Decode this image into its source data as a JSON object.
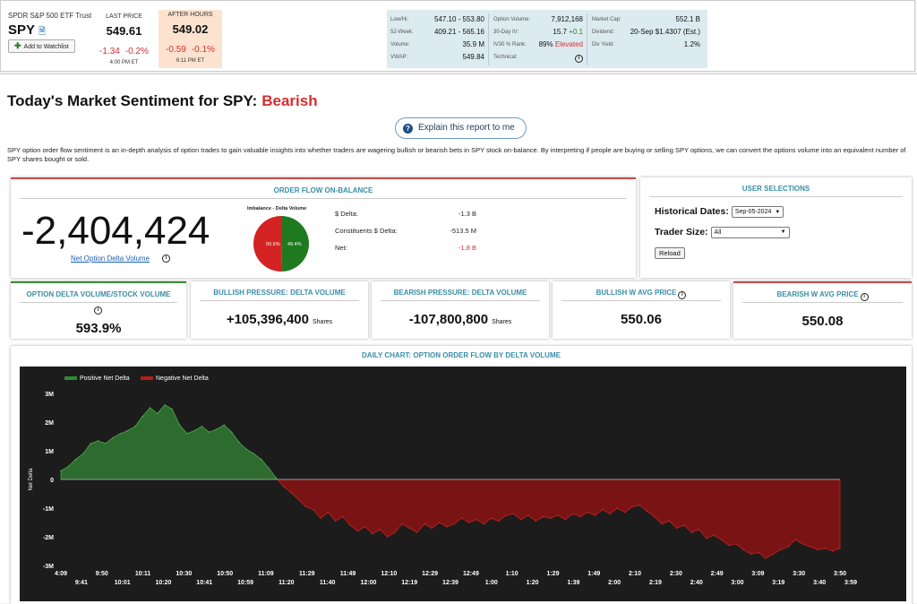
{
  "header": {
    "fund_name": "SPDR S&P 500 ETF Trust",
    "symbol": "SPY",
    "doc_icon": "document-icon",
    "watchlist_label": "Add to Watchlist",
    "last_price": {
      "label": "LAST PRICE",
      "price": "549.61",
      "change": "-1.34",
      "change_pct": "-0.2%",
      "time": "4:00 PM ET"
    },
    "after_hours": {
      "label": "AFTER HOURS",
      "price": "549.02",
      "change": "-0.59",
      "change_pct": "-0.1%",
      "time": "6:11 PM ET"
    },
    "stats": {
      "col1": [
        {
          "label": "Low/Hi:",
          "value": "547.10 - 553.80"
        },
        {
          "label": "52-Week:",
          "value": "409.21 - 565.16"
        },
        {
          "label": "Volume:",
          "value": "35.9 M"
        },
        {
          "label": "VWAP:",
          "value": "549.84"
        }
      ],
      "col2": [
        {
          "label": "Option Volume:",
          "value": "7,912,168"
        },
        {
          "label": "30-Day IV:",
          "value": "15.7",
          "value_extra": "+0.1"
        },
        {
          "label": "IV30 % Rank:",
          "value": "89%",
          "value_extra": "Elevated"
        },
        {
          "label": "Technical:",
          "value": "i"
        }
      ],
      "col3": [
        {
          "label": "Market Cap:",
          "value": "552.1 B"
        },
        {
          "label": "Dividend:",
          "value": "20-Sep $1.4307 (Est.)"
        },
        {
          "label": "Div Yield:",
          "value": "1.2%"
        }
      ]
    }
  },
  "page": {
    "title_prefix": "Today's Market Sentiment for SPY:",
    "title_sentiment": "Bearish",
    "explain_label": "Explain this report to me",
    "description": "SPY option order flow sentiment is an in-depth analysis of option trades to gain valuable insights into whether traders are wagering bullish or bearish bets in SPY stock on-balance. By interpreting if people are buying or selling SPY options, we can convert the options volume into an equivalent number of SPY shares bought or sold."
  },
  "order_flow": {
    "title": "ORDER FLOW ON-BALANCE",
    "value": "-2,404,424",
    "link": "Net Option Delta Volume",
    "imbalance_label": "Imbalance - Delta Volume",
    "pie": {
      "red_label": "50.6%",
      "green_label": "49.4%",
      "red_pct": 50.6,
      "green_pct": 49.4
    },
    "deltas": [
      {
        "label": "$ Delta:",
        "value": "-1.3 B",
        "red": false
      },
      {
        "label": "Constituents $ Delta:",
        "value": "-513.5 M",
        "red": false
      },
      {
        "label": "Net:",
        "value": "-1.8 B",
        "red": true
      }
    ]
  },
  "user_selections": {
    "title": "USER SELECTIONS",
    "historical_label": "Historical Dates:",
    "historical_value": "Sep-05-2024",
    "trader_label": "Trader Size:",
    "trader_value": "All",
    "reload_label": "Reload"
  },
  "metrics": [
    {
      "title": "OPTION DELTA VOLUME/STOCK VOLUME",
      "value": "593.9%",
      "unit": ""
    },
    {
      "title": "BULLISH PRESSURE: DELTA VOLUME",
      "value": "+105,396,400",
      "unit": "Shares"
    },
    {
      "title": "BEARISH PRESSURE: DELTA VOLUME",
      "value": "-107,800,800",
      "unit": "Shares"
    },
    {
      "title": "BULLISH W AVG PRICE",
      "value": "550.06",
      "unit": ""
    },
    {
      "title": "BEARISH W AVG PRICE",
      "value": "550.08",
      "unit": ""
    }
  ],
  "chart_data": {
    "type": "area",
    "title": "DAILY CHART: OPTION ORDER FLOW BY DELTA VOLUME",
    "ylabel": "Net Delta",
    "ylim": [
      -3000000,
      3000000
    ],
    "yticks": [
      "3M",
      "2M",
      "1M",
      "0",
      "-1M",
      "-2M",
      "-3M"
    ],
    "ytick_values": [
      3000000,
      2000000,
      1000000,
      0,
      -1000000,
      -2000000,
      -3000000
    ],
    "legend": [
      "Positive Net Delta",
      "Negative Net Delta"
    ],
    "legend_position": "top-left",
    "colors": {
      "positive": "#2e6b2e",
      "negative": "#7a1414",
      "background": "#1c1c1c"
    },
    "x_labels_top": [
      "4:09",
      "9:50",
      "10:11",
      "10:30",
      "10:50",
      "11:09",
      "11:29",
      "11:49",
      "12:10",
      "12:29",
      "12:49",
      "1:10",
      "1:29",
      "1:49",
      "2:10",
      "2:30",
      "2:49",
      "3:09",
      "3:30",
      "3:50"
    ],
    "x_labels_bottom": [
      "9:41",
      "10:01",
      "10:20",
      "10:41",
      "10:59",
      "11:20",
      "11:40",
      "12:00",
      "12:19",
      "12:39",
      "1:00",
      "1:20",
      "1:39",
      "2:00",
      "2:19",
      "2:40",
      "3:00",
      "3:19",
      "3:40",
      "3:59"
    ],
    "values": [
      300000,
      450000,
      700000,
      900000,
      1250000,
      1350000,
      1250000,
      1450000,
      1600000,
      1700000,
      1850000,
      2200000,
      2500000,
      2300000,
      2600000,
      2450000,
      1900000,
      1600000,
      1700000,
      1850000,
      1650000,
      1750000,
      1900000,
      1650000,
      1300000,
      1050000,
      900000,
      700000,
      400000,
      50000,
      -250000,
      -450000,
      -700000,
      -950000,
      -1050000,
      -1350000,
      -1150000,
      -1450000,
      -1300000,
      -1600000,
      -1800000,
      -1650000,
      -1900000,
      -1750000,
      -2000000,
      -1850000,
      -1550000,
      -1700000,
      -1850000,
      -1550000,
      -1700000,
      -1500000,
      -1650000,
      -1550000,
      -1350000,
      -1500000,
      -1400000,
      -1550000,
      -1350000,
      -1450000,
      -1250000,
      -1200000,
      -1400000,
      -1250000,
      -1450000,
      -1300000,
      -1350000,
      -1250000,
      -1400000,
      -1200000,
      -1300000,
      -1150000,
      -1250000,
      -1050000,
      -1200000,
      -1000000,
      -1150000,
      -950000,
      -900000,
      -1100000,
      -1300000,
      -1550000,
      -1450000,
      -1700000,
      -1600000,
      -1850000,
      -1750000,
      -2050000,
      -1950000,
      -2100000,
      -2300000,
      -2250000,
      -2450000,
      -2600000,
      -2550000,
      -2750000,
      -2600000,
      -2450000,
      -2350000,
      -2100000,
      -2250000,
      -2350000,
      -2450000,
      -2400000,
      -2500000,
      -2400000
    ]
  }
}
